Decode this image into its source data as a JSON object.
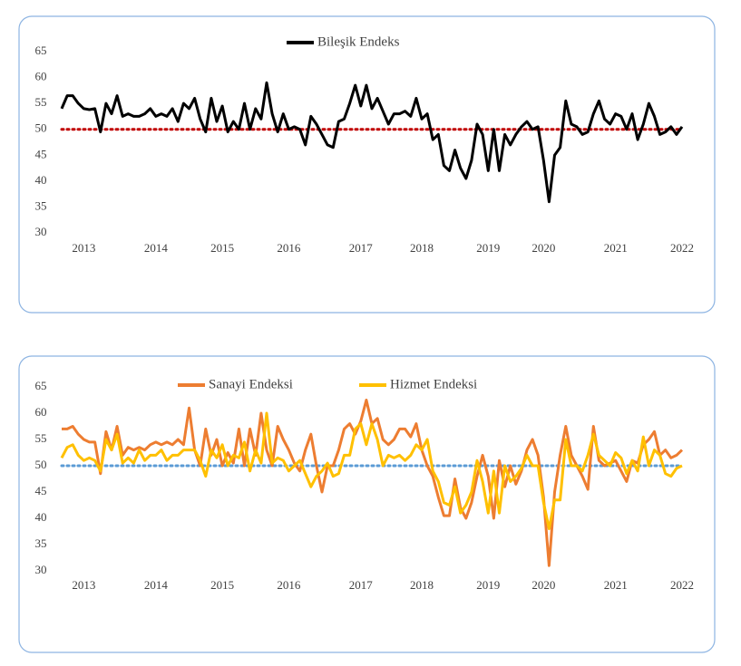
{
  "chart_data": [
    {
      "type": "line",
      "categories": [
        null,
        null,
        null,
        null,
        "2013",
        null,
        null,
        null,
        null,
        null,
        null,
        null,
        null,
        null,
        null,
        null,
        null,
        "2014",
        null,
        null,
        null,
        null,
        null,
        null,
        null,
        null,
        null,
        null,
        null,
        "2015",
        null,
        null,
        null,
        null,
        null,
        null,
        null,
        null,
        null,
        null,
        null,
        "2016",
        null,
        null,
        null,
        null,
        null,
        null,
        null,
        null,
        null,
        null,
        null,
        null,
        "2017",
        null,
        null,
        null,
        null,
        null,
        null,
        null,
        null,
        null,
        null,
        "2018",
        null,
        null,
        null,
        null,
        null,
        null,
        null,
        null,
        null,
        null,
        null,
        "2019",
        null,
        null,
        null,
        null,
        null,
        null,
        null,
        null,
        null,
        "2020",
        null,
        null,
        null,
        null,
        null,
        null,
        null,
        null,
        null,
        null,
        null,
        null,
        "2021",
        null,
        null,
        null,
        null,
        null,
        null,
        null,
        null,
        null,
        null,
        null,
        "2022"
      ],
      "series": [
        {
          "name": "Bileşik Endeks",
          "color": "#000000",
          "values": [
            54,
            56.5,
            56.5,
            55,
            54,
            53.8,
            54,
            49.5,
            55,
            53,
            56.5,
            52.5,
            53,
            52.5,
            52.5,
            53,
            54,
            52.5,
            53,
            52.5,
            54,
            51.5,
            55,
            54,
            56,
            52,
            49.5,
            56,
            51.5,
            54.5,
            49.5,
            51.5,
            50,
            55,
            50,
            54,
            52,
            59,
            53,
            49.5,
            53,
            50,
            50.5,
            50,
            47,
            52.5,
            51,
            49,
            47,
            46.5,
            51.5,
            52,
            55,
            58.5,
            54.5,
            58.5,
            54,
            56,
            53.5,
            51,
            53,
            53,
            53.5,
            52.5,
            56,
            52,
            53,
            48,
            49,
            43,
            42,
            46,
            42.5,
            40.5,
            44,
            51,
            49,
            42,
            50,
            42,
            49,
            47,
            49,
            50.5,
            51.5,
            50,
            50.5,
            44,
            36,
            45,
            46.5,
            55.5,
            51,
            50.5,
            49,
            49.5,
            53,
            55.5,
            52,
            51,
            53,
            52.5,
            50,
            53,
            48,
            51,
            55,
            52.5,
            49,
            49.5,
            50.5,
            49,
            50.5
          ]
        }
      ],
      "ylim": [
        30,
        65
      ],
      "yticks": [
        30,
        35,
        40,
        45,
        50,
        55,
        60,
        65
      ],
      "reference_line": {
        "value": 50,
        "color": "#c00000"
      }
    },
    {
      "type": "line",
      "categories": [
        null,
        null,
        null,
        null,
        "2013",
        null,
        null,
        null,
        null,
        null,
        null,
        null,
        null,
        null,
        null,
        null,
        null,
        "2014",
        null,
        null,
        null,
        null,
        null,
        null,
        null,
        null,
        null,
        null,
        null,
        "2015",
        null,
        null,
        null,
        null,
        null,
        null,
        null,
        null,
        null,
        null,
        null,
        "2016",
        null,
        null,
        null,
        null,
        null,
        null,
        null,
        null,
        null,
        null,
        null,
        null,
        "2017",
        null,
        null,
        null,
        null,
        null,
        null,
        null,
        null,
        null,
        null,
        "2018",
        null,
        null,
        null,
        null,
        null,
        null,
        null,
        null,
        null,
        null,
        null,
        "2019",
        null,
        null,
        null,
        null,
        null,
        null,
        null,
        null,
        null,
        "2020",
        null,
        null,
        null,
        null,
        null,
        null,
        null,
        null,
        null,
        null,
        null,
        null,
        "2021",
        null,
        null,
        null,
        null,
        null,
        null,
        null,
        null,
        null,
        null,
        null,
        "2022"
      ],
      "series": [
        {
          "name": "Sanayi Endeksi",
          "color": "#ed7d31",
          "values": [
            57,
            57,
            57.5,
            56,
            55,
            54.5,
            54.5,
            48.5,
            56.5,
            53,
            57.5,
            52,
            53.5,
            53,
            53.5,
            53,
            54,
            54.5,
            54,
            54.5,
            54,
            55,
            54,
            61,
            53,
            50,
            57,
            52,
            55,
            50,
            52.5,
            50.5,
            57,
            50,
            57,
            52,
            60,
            53,
            50,
            57.5,
            55,
            53,
            50.5,
            49,
            53,
            56,
            50,
            45,
            50,
            50,
            53,
            57,
            58,
            56,
            58.5,
            62.5,
            58,
            59,
            55,
            54,
            55,
            57,
            57,
            55.5,
            58,
            53,
            50,
            48,
            44,
            40.5,
            40.5,
            47.5,
            42,
            40,
            43,
            48,
            52,
            48,
            40,
            51,
            46,
            50,
            46.5,
            49,
            53,
            55,
            52,
            44,
            31,
            45,
            52,
            57.5,
            52,
            50,
            48,
            45.5,
            57.5,
            51,
            50,
            50.5,
            51,
            49,
            47,
            51,
            50.5,
            54,
            55,
            56.5,
            52,
            53,
            51.5,
            52,
            53
          ]
        },
        {
          "name": "Hizmet Endeksi",
          "color": "#ffc000",
          "values": [
            51.5,
            53.5,
            54,
            52,
            51,
            51.5,
            51,
            49,
            55,
            53,
            56,
            50.5,
            51.5,
            50.5,
            53,
            51,
            52,
            52,
            53,
            51,
            52,
            52,
            53,
            53,
            53,
            51,
            48,
            53,
            51.5,
            54,
            50,
            52,
            51.5,
            54.5,
            49,
            53,
            50.5,
            60,
            50.5,
            51.5,
            51,
            49,
            50,
            51,
            48.5,
            46,
            48,
            49,
            50.5,
            48,
            48.5,
            52,
            52,
            57,
            58,
            54,
            58,
            55,
            50,
            52,
            51.5,
            52,
            51,
            52,
            54,
            53,
            55,
            49,
            47,
            43,
            42.5,
            46,
            41,
            42.5,
            45,
            51,
            47,
            41,
            49,
            41,
            50,
            47,
            48,
            49.5,
            52,
            50,
            50,
            43,
            38,
            43.5,
            43.5,
            55,
            50,
            50,
            49,
            52,
            56,
            52,
            51,
            50,
            52.5,
            51.5,
            48.5,
            51,
            49,
            55.5,
            50,
            53,
            52,
            48.5,
            48,
            49.5,
            50
          ]
        }
      ],
      "ylim": [
        30,
        65
      ],
      "yticks": [
        30,
        35,
        40,
        45,
        50,
        55,
        60,
        65
      ],
      "reference_line": {
        "value": 50,
        "color": "#5b9bd5"
      }
    }
  ]
}
